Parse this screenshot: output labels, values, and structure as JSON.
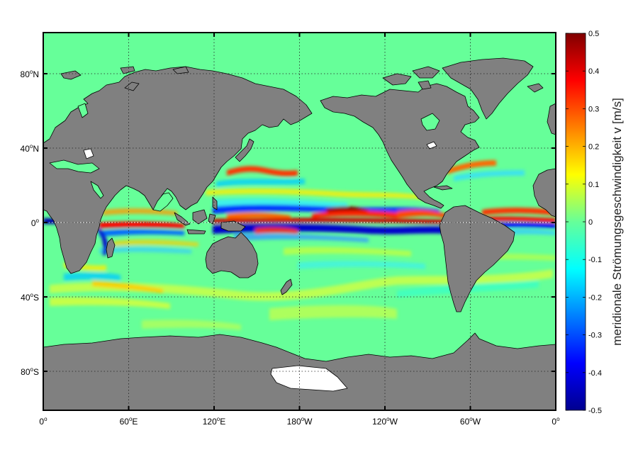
{
  "map": {
    "ocean_color": "#66ff99",
    "land_color": "#808080",
    "ice_color": "#ffffff",
    "x_ticks": [
      {
        "lon": 0,
        "label": "0",
        "deg": "o",
        "hemi": ""
      },
      {
        "lon": 60,
        "label": "60",
        "deg": "o",
        "hemi": "E"
      },
      {
        "lon": 120,
        "label": "120",
        "deg": "o",
        "hemi": "E"
      },
      {
        "lon": 180,
        "label": "180",
        "deg": "o",
        "hemi": "W"
      },
      {
        "lon": 240,
        "label": "120",
        "deg": "o",
        "hemi": "W"
      },
      {
        "lon": 300,
        "label": "60",
        "deg": "o",
        "hemi": "W"
      },
      {
        "lon": 360,
        "label": "0",
        "deg": "o",
        "hemi": ""
      }
    ],
    "y_ticks": [
      {
        "lat": 80,
        "label": "80",
        "deg": "o",
        "hemi": "N"
      },
      {
        "lat": 40,
        "label": "40",
        "deg": "o",
        "hemi": "N"
      },
      {
        "lat": 0,
        "label": "0",
        "deg": "o",
        "hemi": ""
      },
      {
        "lat": -40,
        "label": "40",
        "deg": "o",
        "hemi": "S"
      },
      {
        "lat": -80,
        "label": "80",
        "deg": "o",
        "hemi": "S"
      }
    ]
  },
  "colorbar": {
    "title": "meridionale Strömungsgeschwindigkeit v [m/s]",
    "range": [
      -0.5,
      0.5
    ],
    "ticks": [
      "0.5",
      "0.4",
      "0.3",
      "0.2",
      "0.1",
      "0",
      "-0.1",
      "-0.2",
      "-0.3",
      "-0.4",
      "-0.5"
    ],
    "colormap": "jet"
  }
}
